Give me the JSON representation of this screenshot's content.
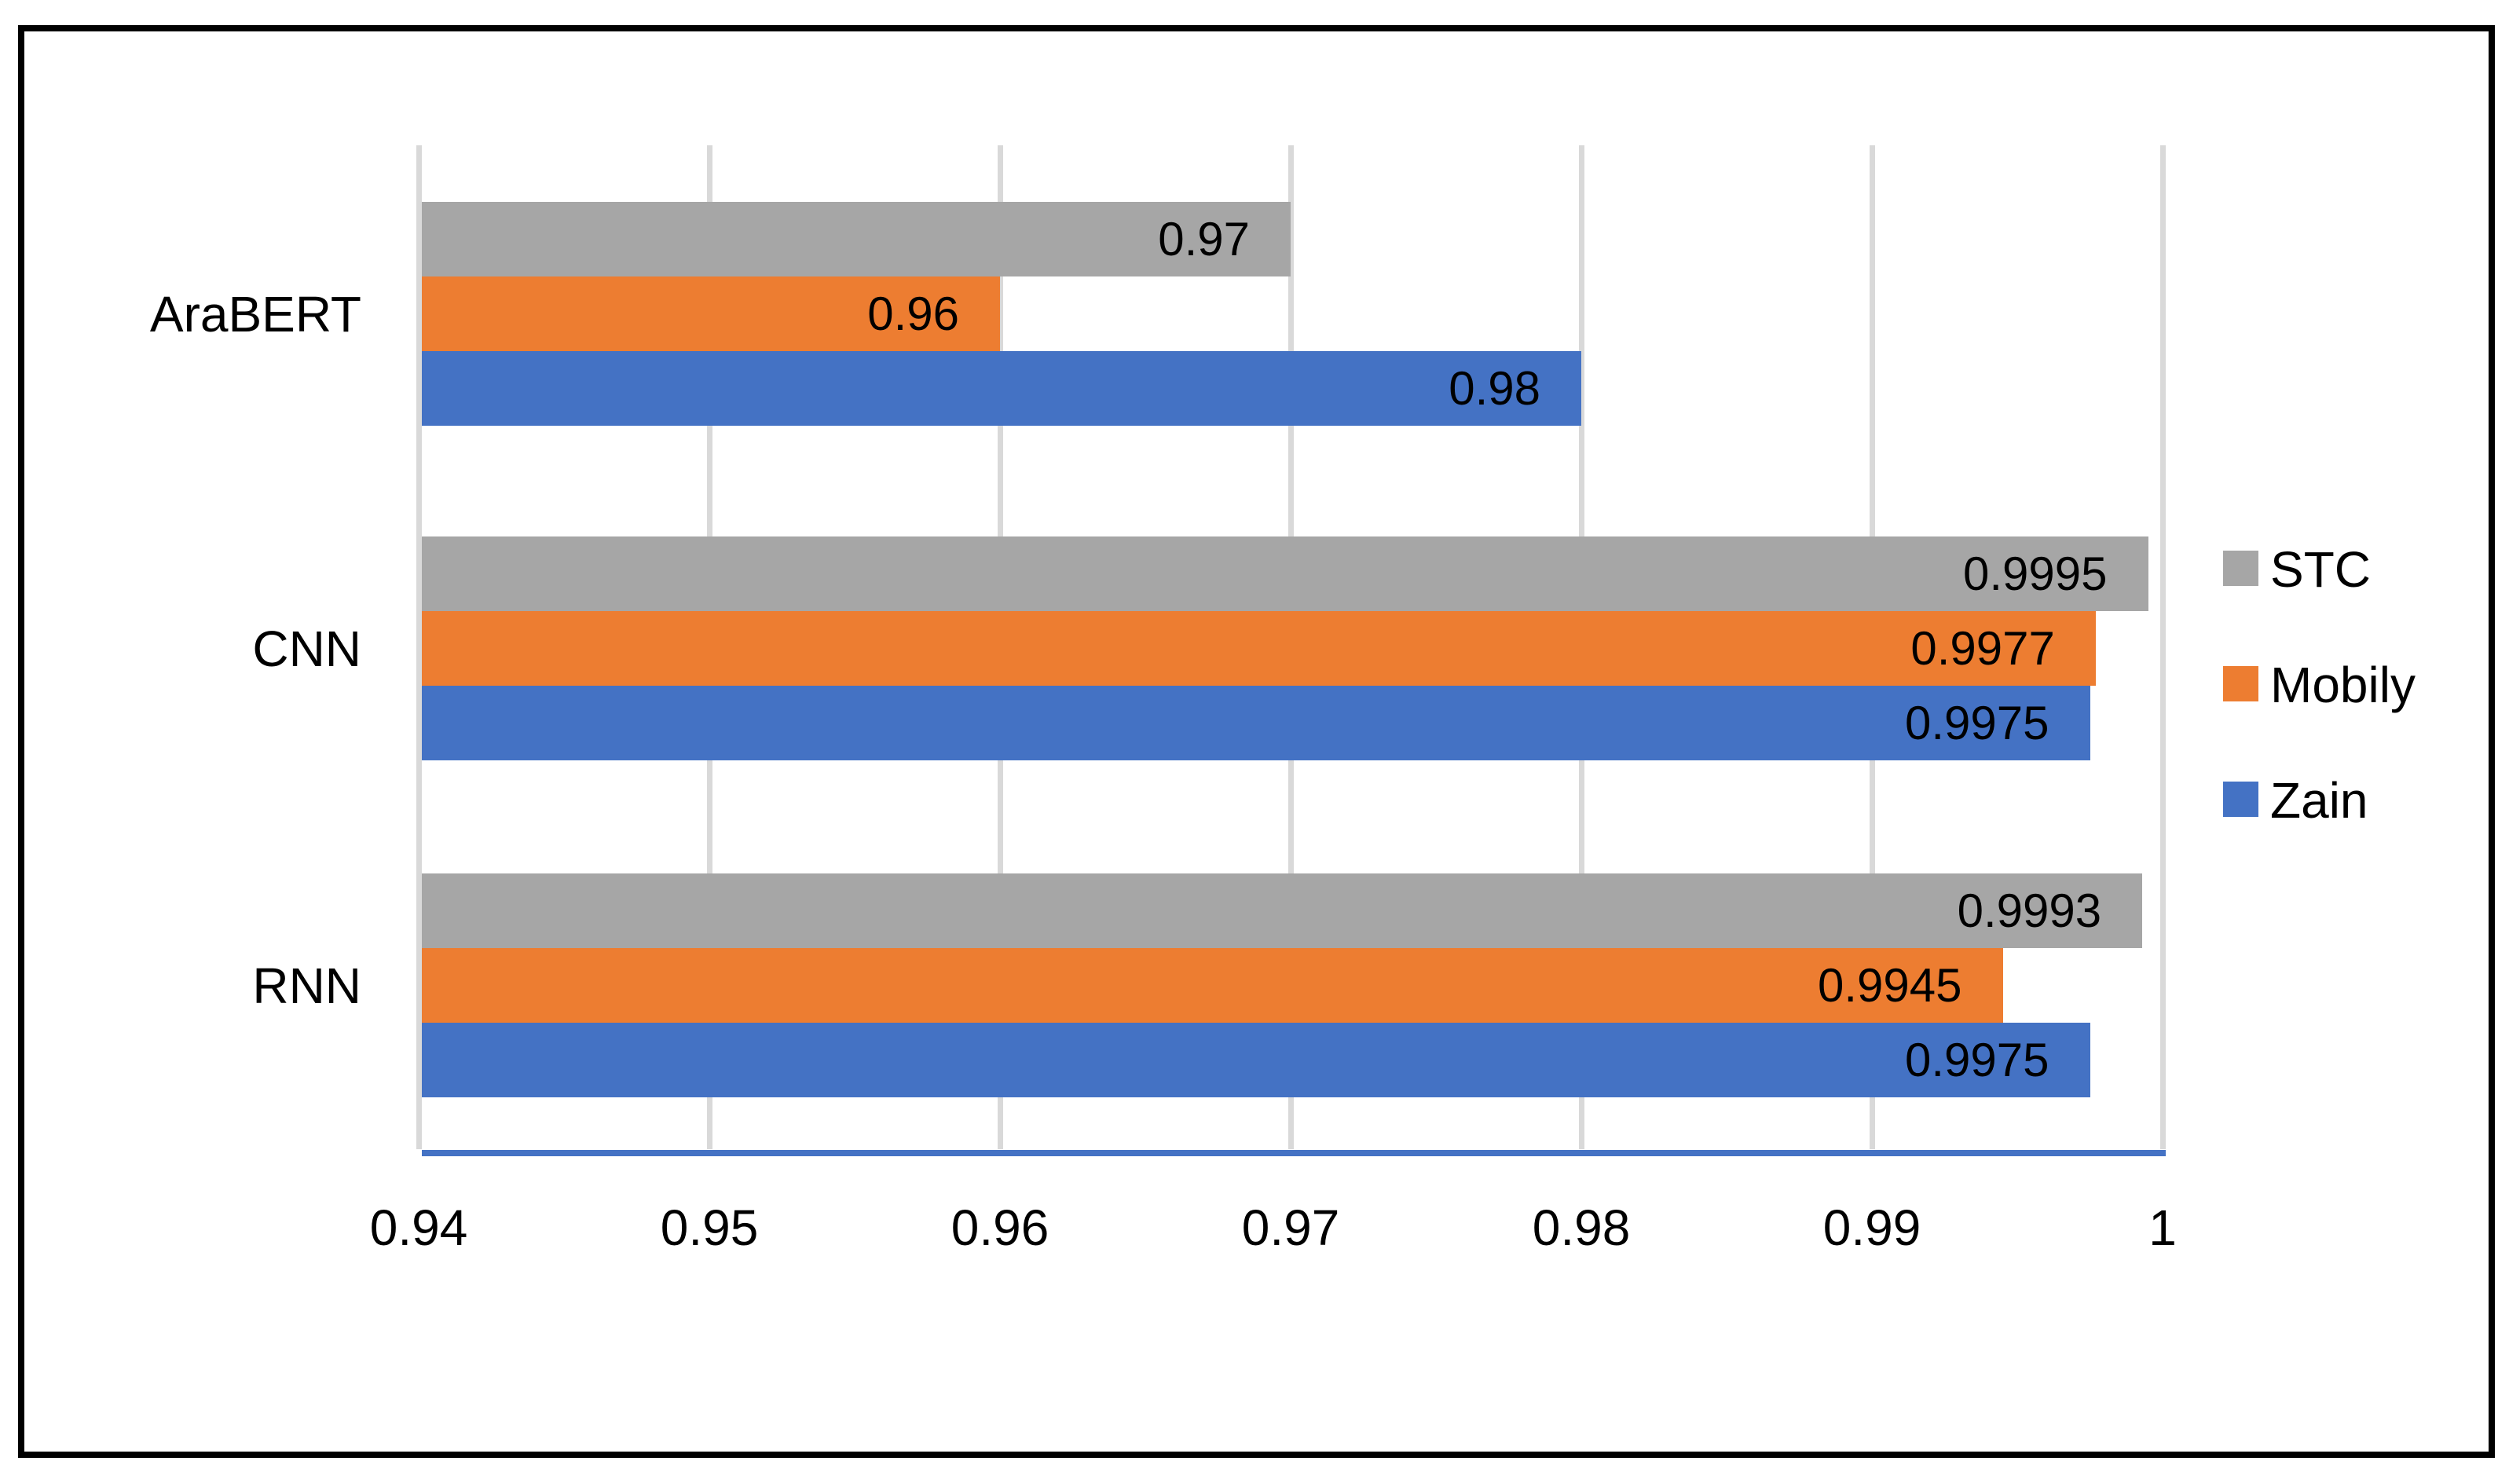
{
  "chart_data": {
    "type": "bar",
    "orientation": "horizontal",
    "title": "",
    "xlabel": "",
    "ylabel": "",
    "categories": [
      "AraBERT",
      "CNN",
      "RNN"
    ],
    "series": [
      {
        "name": "STC",
        "color": "#A6A6A6",
        "values": [
          0.97,
          0.9995,
          0.9993
        ],
        "labels": [
          "0.97",
          "0.9995",
          "0.9993"
        ]
      },
      {
        "name": "Mobily",
        "color": "#ED7D31",
        "values": [
          0.96,
          0.9977,
          0.9945
        ],
        "labels": [
          "0.96",
          "0.9977",
          "0.9945"
        ]
      },
      {
        "name": "Zain",
        "color": "#4472C4",
        "values": [
          0.98,
          0.9975,
          0.9975
        ],
        "labels": [
          "0.98",
          "0.9975",
          "0.9975"
        ]
      }
    ],
    "x_axis": {
      "min": 0.94,
      "max": 1.0,
      "tick_step": 0.01,
      "tick_labels": [
        "0.94",
        "0.95",
        "0.96",
        "0.97",
        "0.98",
        "0.99",
        "1"
      ]
    },
    "legend": {
      "position": "right",
      "entries": [
        "STC",
        "Mobily",
        "Zain"
      ]
    },
    "grid": "vertical-only",
    "colors": {
      "gridline": "#D9D9D9",
      "axis_baseline": "#4472C4",
      "text": "#000000",
      "figure_border": "#000000",
      "background": "#FFFFFF"
    }
  }
}
